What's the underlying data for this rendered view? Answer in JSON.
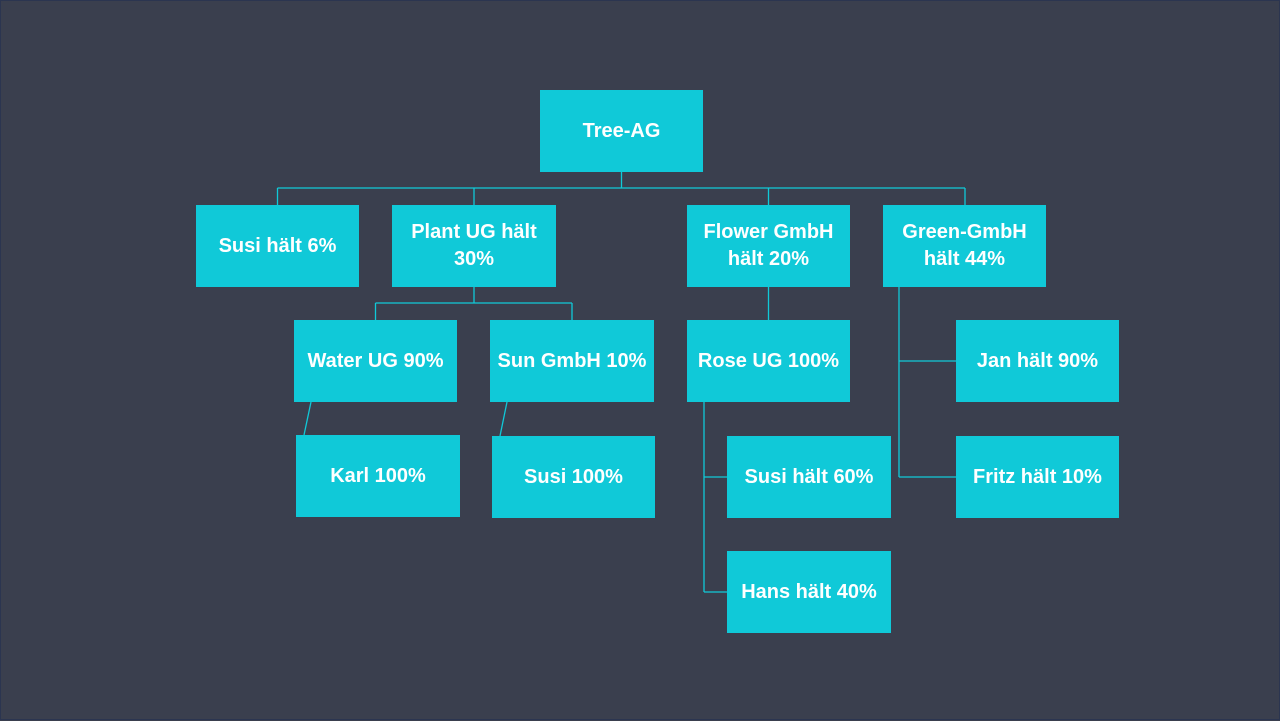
{
  "colors": {
    "background": "#3a3f4e",
    "node_fill": "#10c9d8",
    "connector": "#10c9d8",
    "text": "#ffffff"
  },
  "nodes": {
    "root": "Tree-AG",
    "susi6": "Susi hält 6%",
    "plant": "Plant UG hält\n30%",
    "flower": "Flower GmbH\nhält 20%",
    "green": "Green-GmbH\nhält 44%",
    "water": "Water UG 90%",
    "sun": "Sun GmbH 10%",
    "rose": "Rose UG 100%",
    "jan": "Jan hält 90%",
    "karl": "Karl 100%",
    "susi100": "Susi 100%",
    "susi60": "Susi hält 60%",
    "fritz": "Fritz hält 10%",
    "hans": "Hans hält 40%"
  },
  "edges": [
    [
      "root",
      "susi6"
    ],
    [
      "root",
      "plant"
    ],
    [
      "root",
      "flower"
    ],
    [
      "root",
      "green"
    ],
    [
      "plant",
      "water"
    ],
    [
      "plant",
      "sun"
    ],
    [
      "flower",
      "rose"
    ],
    [
      "green",
      "jan"
    ],
    [
      "green",
      "fritz"
    ],
    [
      "water",
      "karl"
    ],
    [
      "sun",
      "susi100"
    ],
    [
      "rose",
      "susi60"
    ],
    [
      "rose",
      "hans"
    ]
  ]
}
